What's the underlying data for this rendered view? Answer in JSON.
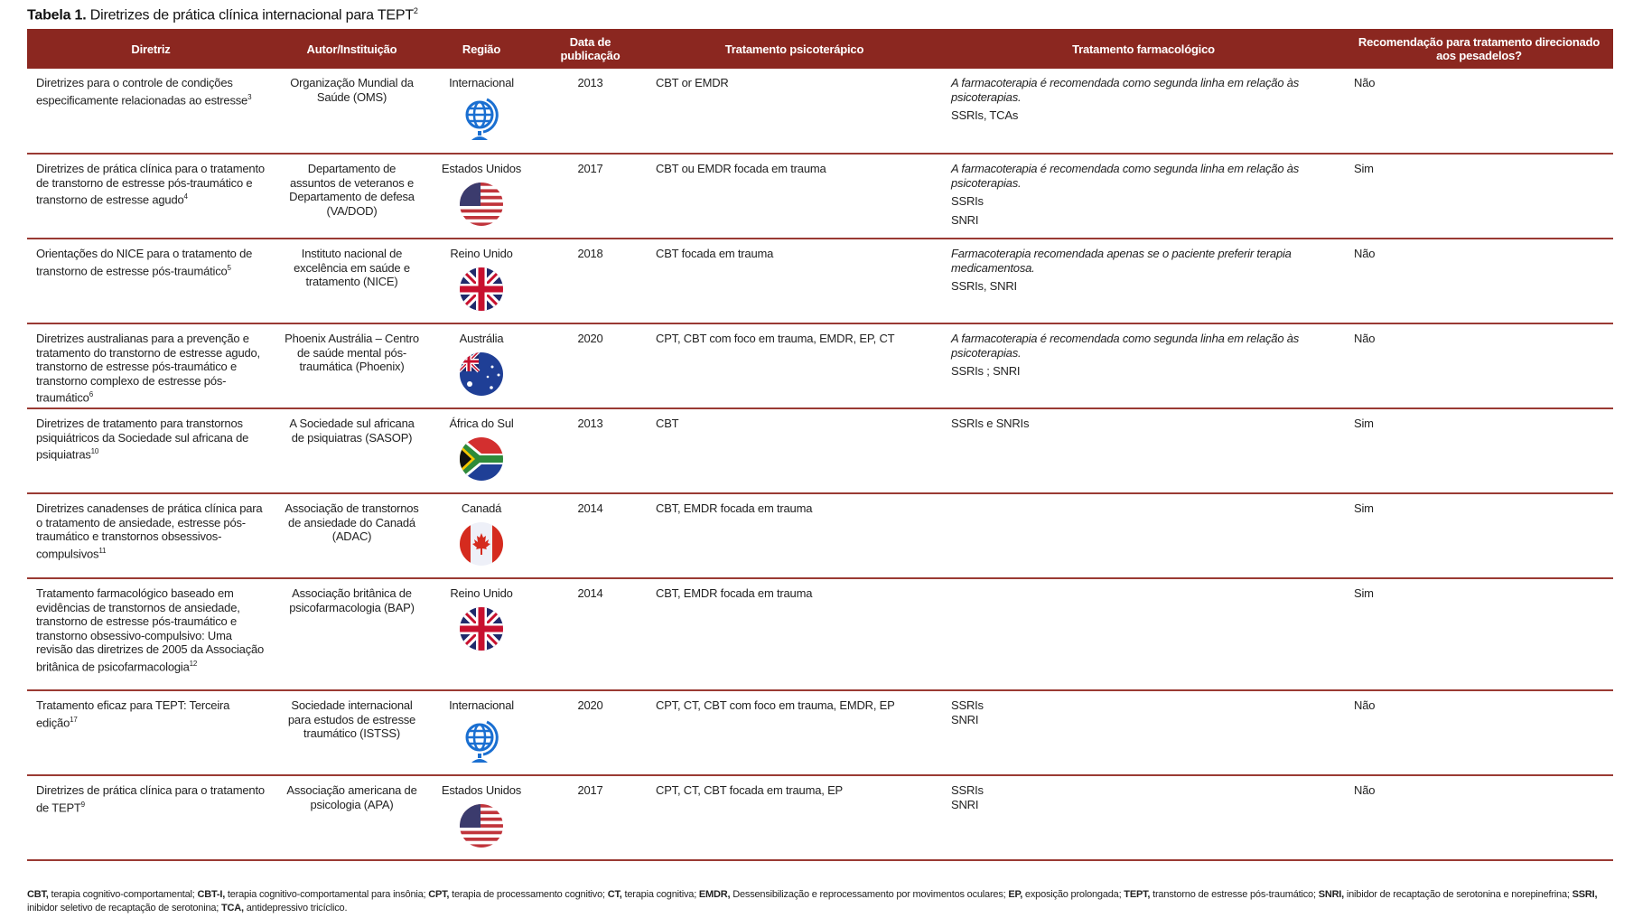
{
  "title": {
    "label": "Tabela 1.",
    "text": "Diretrizes de prática clínica internacional para TEPT",
    "sup": "2"
  },
  "headers": [
    "Diretriz",
    "Autor/Instituição",
    "Região",
    "Data de publicação",
    "Tratamento psicoterápico",
    "Tratamento farmacológico",
    "Recomendação para tratamento direcionado aos pesadelos?"
  ],
  "rows": [
    {
      "guideline": "Diretrizes para o controle de condições especificamente relacionadas ao estresse",
      "ref": "3",
      "author": "Organização Mundial da Saúde (OMS)",
      "region": "Internacional",
      "icon": "globe-icon",
      "year": "2013",
      "psycho": "CBT or EMDR",
      "pharm_note": "A farmacoterapia é recomendada como segunda linha em relação às psicoterapias.",
      "pharm": [
        "SSRIs, TCAs"
      ],
      "nightmare": "Não"
    },
    {
      "guideline": "Diretrizes de prática clínica para o tratamento de transtorno de estresse pós-traumático e transtorno de estresse agudo",
      "ref": "4",
      "author": "Departamento de assuntos de veteranos e Departamento de defesa (VA/DOD)",
      "region": "Estados Unidos",
      "icon": "us-flag-icon",
      "year": "2017",
      "psycho": "CBT ou EMDR focada em trauma",
      "pharm_note": "A farmacoterapia é recomendada como segunda linha em relação às psicoterapias.",
      "pharm": [
        "SSRIs",
        "SNRI"
      ],
      "nightmare": "Sim"
    },
    {
      "guideline": "Orientações do NICE para o tratamento de transtorno de estresse pós-traumático",
      "ref": "5",
      "author": "Instituto nacional de excelência em saúde e tratamento (NICE)",
      "region": "Reino Unido",
      "icon": "uk-flag-icon",
      "year": "2018",
      "psycho": "CBT focada em trauma",
      "pharm_note": "Farmacoterapia recomendada apenas se o paciente preferir terapia medicamentosa.",
      "pharm": [
        "SSRIs, SNRI"
      ],
      "nightmare": "Não"
    },
    {
      "guideline": "Diretrizes australianas para a prevenção e tratamento do transtorno de estresse agudo, transtorno de estresse pós-traumático e transtorno complexo de estresse pós-traumático",
      "ref": "6",
      "author": "Phoenix Austrália – Centro de saúde mental pós-traumática (Phoenix)",
      "region": "Austrália",
      "icon": "australia-flag-icon",
      "year": "2020",
      "psycho": "CPT, CBT com foco em trauma, EMDR, EP, CT",
      "pharm_note": "A farmacoterapia é recomendada como segunda linha em relação às psicoterapias.",
      "pharm": [
        "SSRIs ; SNRI"
      ],
      "nightmare": "Não"
    },
    {
      "guideline": "Diretrizes de tratamento para transtornos psiquiátricos da Sociedade sul africana de psiquiatras",
      "ref": "10",
      "author": "A Sociedade sul africana de psiquiatras (SASOP)",
      "region": "África do Sul",
      "icon": "south-africa-flag-icon",
      "year": "2013",
      "psycho": "CBT",
      "pharm_note": "",
      "pharm": [
        "SSRIs e SNRIs"
      ],
      "nightmare": "Sim"
    },
    {
      "guideline": "Diretrizes canadenses de prática clínica para o tratamento de ansiedade, estresse pós-traumático e transtornos obsessivos-compulsivos",
      "ref": "11",
      "author": "Associação de transtornos de ansiedade do Canadá (ADAC)",
      "region": "Canadá",
      "icon": "canada-flag-icon",
      "year": "2014",
      "psycho": "CBT, EMDR focada em trauma",
      "pharm_note": "",
      "pharm": [],
      "nightmare": "Sim"
    },
    {
      "guideline": "Tratamento farmacológico baseado em evidências de transtornos de ansiedade, transtorno de estresse pós-traumático e transtorno obsessivo-compulsivo: Uma revisão das diretrizes de 2005 da Associação britânica de psicofarmacologia",
      "ref": "12",
      "author": "Associação britânica de psicofarmacologia (BAP)",
      "region": "Reino Unido",
      "icon": "uk-flag-icon",
      "year": "2014",
      "psycho": "CBT, EMDR focada em trauma",
      "pharm_note": "",
      "pharm": [],
      "nightmare": "Sim"
    },
    {
      "guideline": "Tratamento eficaz para TEPT: Terceira edição",
      "ref": "17",
      "author": "Sociedade internacional para estudos de estresse traumático (ISTSS)",
      "region": "Internacional",
      "icon": "globe-icon",
      "year": "2020",
      "psycho": "CPT, CT, CBT com foco em trauma, EMDR, EP",
      "pharm_note": "",
      "pharm": [
        "SSRIs",
        "SNRI"
      ],
      "nightmare": "Não"
    },
    {
      "guideline": "Diretrizes de prática clínica para o tratamento de TEPT",
      "ref": "9",
      "author": "Associação americana de psicologia (APA)",
      "region": "Estados Unidos",
      "icon": "us-flag-icon",
      "year": "2017",
      "psycho": "CPT, CT, CBT focada em trauma, EP",
      "pharm_note": "",
      "pharm": [
        "SSRIs",
        "SNRI"
      ],
      "nightmare": "Não"
    }
  ],
  "footnote": [
    {
      "abbr": "CBT,",
      "def": " terapia cognitivo-comportamental; "
    },
    {
      "abbr": "CBT-I,",
      "def": " terapia cognitivo-comportamental para insônia; "
    },
    {
      "abbr": "CPT,",
      "def": " terapia de processamento cognitivo; "
    },
    {
      "abbr": "CT,",
      "def": " terapia cognitiva; "
    },
    {
      "abbr": "EMDR,",
      "def": " Dessensibilização e reprocessamento por movimentos oculares; "
    },
    {
      "abbr": "EP,",
      "def": " exposição prolongada; "
    },
    {
      "abbr": "TEPT,",
      "def": " transtorno de estresse pós-traumático; "
    },
    {
      "abbr": "SNRI,",
      "def": " inibidor de recaptação de serotonina e norepinefrina; "
    },
    {
      "abbr": "SSRI,",
      "def": " inibidor seletivo de recaptação de serotonina; "
    },
    {
      "abbr": "TCA,",
      "def": " antidepressivo tricíclico."
    }
  ],
  "colors": {
    "header": "#8b2720",
    "rule": "#9a3a33",
    "globe": "#1a6fd1"
  }
}
